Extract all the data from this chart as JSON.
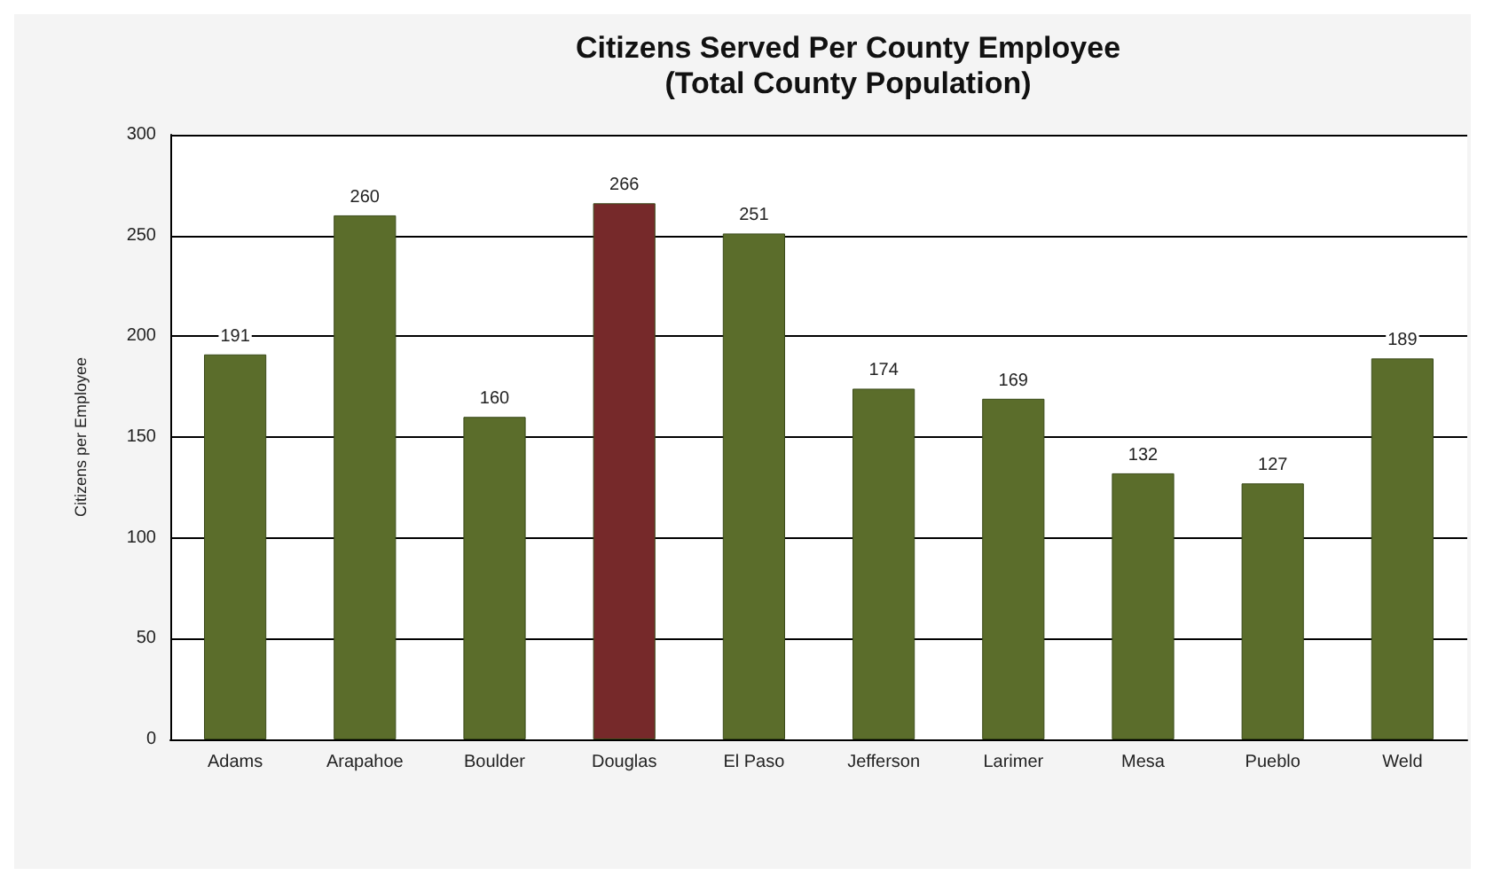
{
  "chart_data": {
    "type": "bar",
    "title": "Citizens Served Per County Employee\n(Total County Population)",
    "ylabel": "Citizens per Employee",
    "categories": [
      "Adams",
      "Arapahoe",
      "Boulder",
      "Douglas",
      "El Paso",
      "Jefferson",
      "Larimer",
      "Mesa",
      "Pueblo",
      "Weld"
    ],
    "values": [
      191,
      260,
      160,
      266,
      251,
      174,
      169,
      132,
      127,
      189
    ],
    "colors": [
      "#5b6d2b",
      "#5b6d2b",
      "#5b6d2b",
      "#76292a",
      "#5b6d2b",
      "#5b6d2b",
      "#5b6d2b",
      "#5b6d2b",
      "#5b6d2b",
      "#5b6d2b"
    ],
    "ylim": [
      0,
      300
    ],
    "yticks": [
      0,
      50,
      100,
      150,
      200,
      250,
      300
    ],
    "grid": "y",
    "data_labels": true
  }
}
